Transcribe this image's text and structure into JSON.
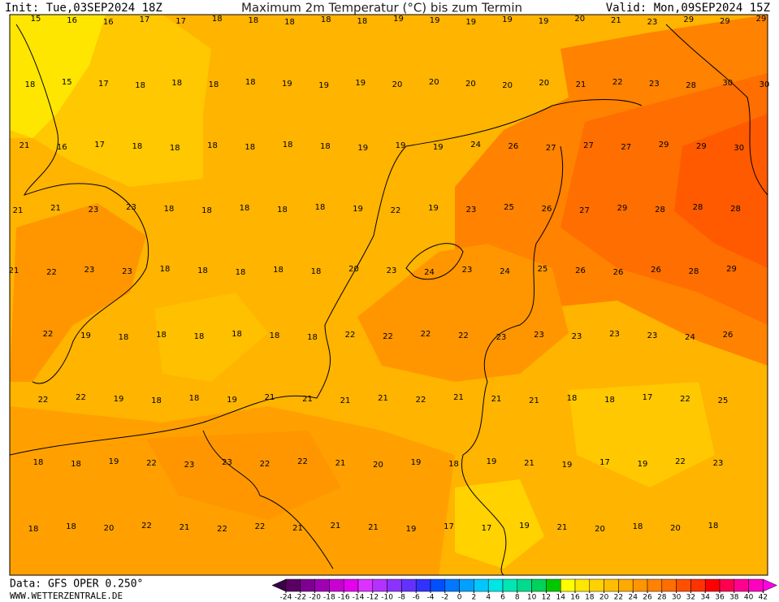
{
  "header": {
    "init": "Init: Tue,03SEP2024 18Z",
    "title": "Maximum 2m Temperatur (°C) bis zum Termin",
    "valid": "Valid: Mon,09SEP2024 15Z"
  },
  "map": {
    "rows": [
      [
        15,
        16,
        16,
        17,
        17,
        18,
        18,
        18,
        18,
        18,
        19,
        19,
        19,
        19,
        19,
        20,
        21,
        23,
        29,
        29,
        29
      ],
      [
        18,
        15,
        17,
        18,
        18,
        18,
        18,
        19,
        19,
        19,
        20,
        20,
        20,
        20,
        20,
        21,
        22,
        23,
        28,
        30,
        30
      ],
      [
        21,
        16,
        17,
        18,
        18,
        18,
        18,
        18,
        18,
        19,
        19,
        19,
        24,
        26,
        27,
        27,
        27,
        29,
        29,
        30
      ],
      [
        21,
        21,
        23,
        23,
        18,
        18,
        18,
        18,
        18,
        19,
        22,
        19,
        23,
        25,
        26,
        27,
        29,
        28,
        28,
        28
      ],
      [
        21,
        22,
        23,
        23,
        18,
        18,
        18,
        18,
        18,
        20,
        23,
        24,
        23,
        24,
        25,
        26,
        26,
        26,
        28,
        29
      ],
      [
        22,
        19,
        18,
        18,
        18,
        18,
        18,
        18,
        22,
        22,
        22,
        22,
        23,
        23,
        23,
        23,
        23,
        24,
        26
      ],
      [
        22,
        22,
        19,
        18,
        18,
        19,
        21,
        21,
        21,
        21,
        22,
        21,
        21,
        21,
        18,
        18,
        17,
        22,
        25
      ],
      [
        18,
        18,
        19,
        22,
        23,
        23,
        22,
        22,
        21,
        20,
        19,
        18,
        19,
        21,
        19,
        17,
        19,
        22,
        23
      ],
      [
        18,
        18,
        20,
        22,
        21,
        22,
        22,
        21,
        21,
        21,
        19,
        17,
        17,
        19,
        21,
        20,
        18,
        20,
        18
      ]
    ]
  },
  "footer": {
    "data": "Data: GFS OPER 0.250°",
    "site": "WWW.WETTERZENTRALE.DE"
  },
  "legend": {
    "ticks": [
      -24,
      -22,
      -20,
      -18,
      -16,
      -14,
      -12,
      -10,
      -8,
      -6,
      -4,
      -2,
      0,
      2,
      4,
      6,
      8,
      10,
      12,
      14,
      16,
      18,
      20,
      22,
      24,
      26,
      28,
      30,
      32,
      34,
      36,
      38,
      40,
      42
    ],
    "colors": [
      "#3c0046",
      "#5a0064",
      "#7d0091",
      "#a000b4",
      "#c800d2",
      "#e600f0",
      "#dc32ff",
      "#b432ff",
      "#8c32ff",
      "#6432ff",
      "#3232ff",
      "#0050ff",
      "#0078ff",
      "#00a0ff",
      "#00c8ff",
      "#00e6e6",
      "#00e6b4",
      "#00dc8c",
      "#00d25a",
      "#00c800",
      "#ffff00",
      "#ffe600",
      "#ffd200",
      "#ffbe00",
      "#ffaa00",
      "#ff9600",
      "#ff8200",
      "#ff6e00",
      "#ff5000",
      "#ff3200",
      "#ff0000",
      "#ff0050",
      "#ff0090",
      "#ff00c0",
      "#ff00e6"
    ]
  }
}
